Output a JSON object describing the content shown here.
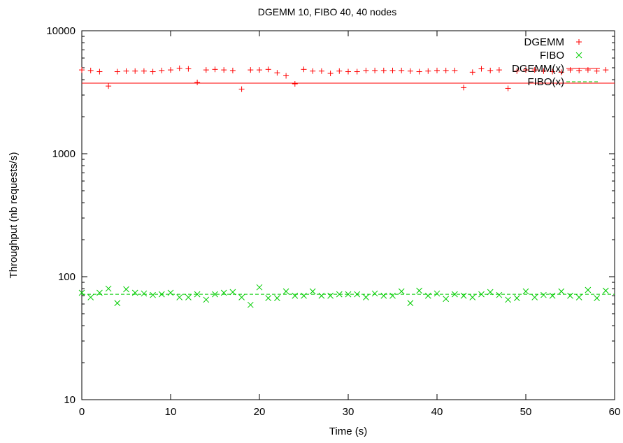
{
  "chart_data": {
    "type": "scatter",
    "title": "DGEMM 10, FIBO 40, 40 nodes",
    "xlabel": "Time (s)",
    "ylabel": "Throughput (nb requests/s)",
    "xlim": [
      0,
      60
    ],
    "ylim": [
      10,
      10000
    ],
    "y_scale": "log",
    "grid": false,
    "legend_position": "top-right",
    "x_ticks": [
      0,
      10,
      20,
      30,
      40,
      50,
      60
    ],
    "x_tick_labels": [
      "0",
      "10",
      "20",
      "30",
      "40",
      "50",
      "60"
    ],
    "y_ticks": [
      10,
      100,
      1000,
      10000
    ],
    "y_tick_labels": [
      "10",
      "100",
      "1000",
      "10000"
    ],
    "x": [
      0,
      1,
      2,
      3,
      4,
      5,
      6,
      7,
      8,
      9,
      10,
      11,
      12,
      13,
      14,
      15,
      16,
      17,
      18,
      19,
      20,
      21,
      22,
      23,
      24,
      25,
      26,
      27,
      28,
      29,
      30,
      31,
      32,
      33,
      34,
      35,
      36,
      37,
      38,
      39,
      40,
      41,
      42,
      43,
      44,
      45,
      46,
      47,
      48,
      49,
      50,
      51,
      52,
      53,
      54,
      55,
      56,
      57,
      58,
      59
    ],
    "series": [
      {
        "name": "DGEMM",
        "marker": "plus",
        "color": "#ff0000",
        "values": [
          4800,
          4750,
          4650,
          3550,
          4650,
          4700,
          4700,
          4700,
          4650,
          4750,
          4800,
          4950,
          4900,
          3800,
          4800,
          4850,
          4800,
          4750,
          3350,
          4800,
          4800,
          4850,
          4550,
          4300,
          3700,
          4850,
          4700,
          4700,
          4500,
          4700,
          4650,
          4650,
          4750,
          4750,
          4750,
          4750,
          4750,
          4700,
          4650,
          4700,
          4750,
          4750,
          4750,
          3450,
          4600,
          4900,
          4750,
          4800,
          3400,
          4700,
          4800,
          4800,
          4700,
          4650,
          4600,
          4800,
          4750,
          4800,
          4700,
          4800
        ]
      },
      {
        "name": "FIBO",
        "marker": "cross",
        "color": "#00cc00",
        "values": [
          74,
          68,
          74,
          80,
          61,
          79,
          74,
          73,
          71,
          72,
          74,
          68,
          68,
          72,
          65,
          72,
          74,
          75,
          68,
          59,
          82,
          67,
          67,
          76,
          70,
          70,
          76,
          70,
          70,
          72,
          72,
          72,
          68,
          73,
          70,
          70,
          76,
          61,
          77,
          70,
          73,
          66,
          72,
          70,
          68,
          72,
          75,
          71,
          65,
          67,
          76,
          68,
          71,
          70,
          76,
          70,
          68,
          78,
          67,
          77
        ]
      },
      {
        "name": "DGEMM(x)",
        "type": "line",
        "style": "solid",
        "color": "#ff0000",
        "value": 3750
      },
      {
        "name": "FIBO(x)",
        "type": "line",
        "style": "dashed",
        "color": "#00cc00",
        "value": 72
      }
    ]
  }
}
